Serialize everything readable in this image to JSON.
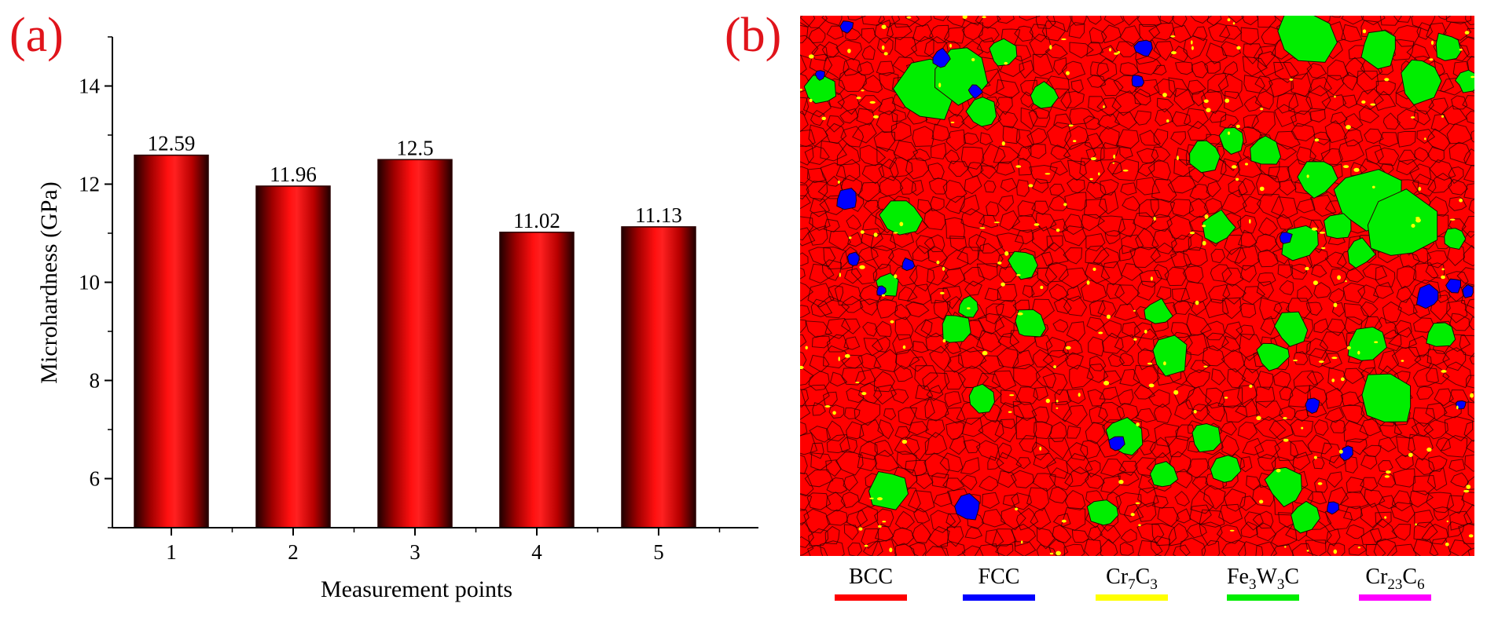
{
  "panels": {
    "a": "(a)",
    "b": "(b)"
  },
  "chart_data": {
    "type": "bar",
    "title": "",
    "xlabel": "Measurement points",
    "ylabel": "Microhardness (GPa)",
    "categories": [
      "1",
      "2",
      "3",
      "4",
      "5"
    ],
    "values": [
      12.59,
      11.96,
      12.5,
      11.02,
      11.13
    ],
    "labels": [
      "12.59",
      "11.96",
      "12.5",
      "11.02",
      "11.13"
    ],
    "ylim": [
      5,
      15
    ],
    "yticks": [
      6,
      8,
      10,
      12,
      14
    ],
    "bar_color": "#ff1010",
    "bar_edge_color": "#2a0000"
  },
  "phase_map": {
    "legend": [
      {
        "base": "BCC",
        "sub1": "",
        "mid": "",
        "sub2": "",
        "tail": "",
        "sub3": "",
        "color": "#ff0000"
      },
      {
        "base": "FCC",
        "sub1": "",
        "mid": "",
        "sub2": "",
        "tail": "",
        "sub3": "",
        "color": "#0000ff"
      },
      {
        "base": "Cr",
        "sub1": "7",
        "mid": "C",
        "sub2": "3",
        "tail": "",
        "sub3": "",
        "color": "#ffff00"
      },
      {
        "base": "Fe",
        "sub1": "3",
        "mid": "W",
        "sub2": "3",
        "tail": "C",
        "sub3": "",
        "color": "#00ee00"
      },
      {
        "base": "Cr",
        "sub1": "23",
        "mid": "C",
        "sub2": "6",
        "tail": "",
        "sub3": "",
        "color": "#ff00ff"
      }
    ],
    "colors": {
      "matrix": "#ff0000",
      "boundary": "#2a0000",
      "fcc": "#0000ff",
      "carbide_large": "#00ee00",
      "carbide_small": "#ffff00"
    }
  }
}
